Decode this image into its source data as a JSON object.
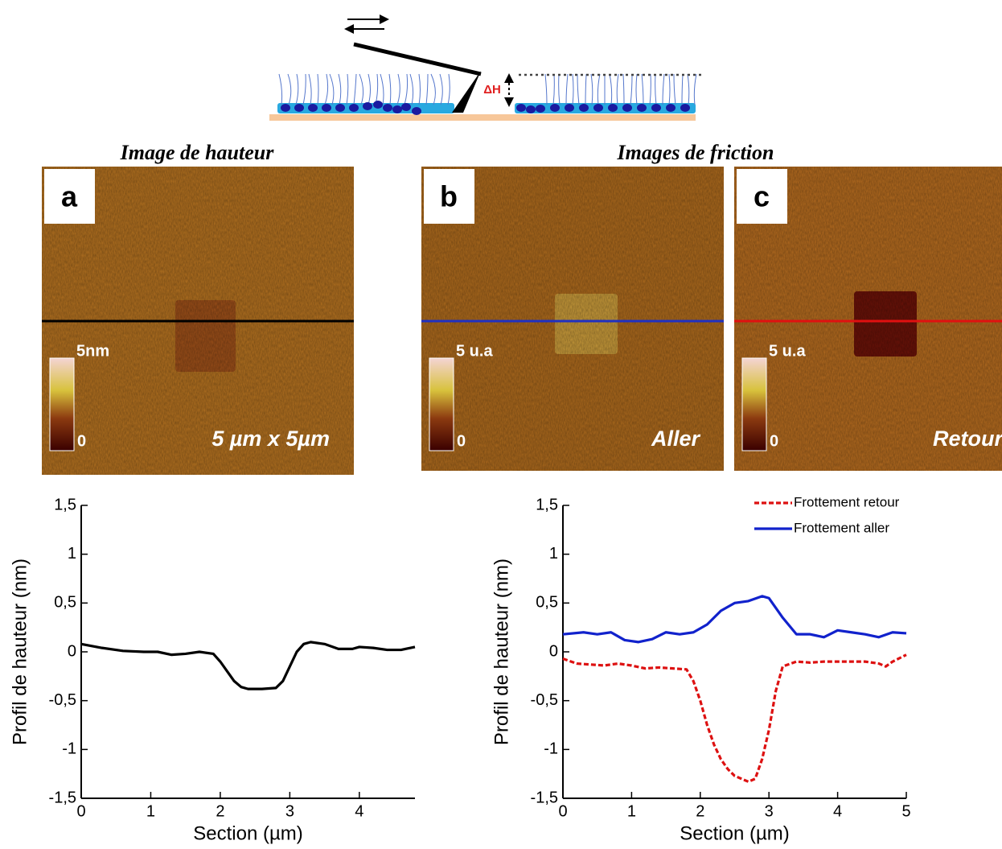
{
  "figure": {
    "schematic_label": "ΔH",
    "titles": [
      "Image de hauteur",
      "Images de friction"
    ],
    "panels": [
      {
        "letter": "a",
        "scale_max": "5nm",
        "scale_min": "0",
        "caption": "5 µm x 5µm"
      },
      {
        "letter": "b",
        "scale_max": "5 u.a",
        "scale_min": "0",
        "caption": "Aller"
      },
      {
        "letter": "c",
        "scale_max": "5 u.a",
        "scale_min": "0",
        "caption": "Retour"
      }
    ]
  },
  "chart_data": [
    {
      "type": "line",
      "x_label": "Section (µm)",
      "y_label": "Profil de hauteur (nm)",
      "xlim": [
        0,
        4.8
      ],
      "ylim": [
        -1.5,
        1.5
      ],
      "xticks": [
        0,
        1,
        2,
        3,
        4
      ],
      "yticks": [
        {
          "value": -1.5,
          "label": "-1,5"
        },
        -1,
        {
          "value": -0.5,
          "label": "-0,5"
        },
        0,
        {
          "value": 0.5,
          "label": "0,5"
        },
        1,
        {
          "value": 1.5,
          "label": "1,5"
        }
      ],
      "series": [
        {
          "color": "#000000",
          "x": [
            0,
            0.3,
            0.6,
            0.9,
            1.1,
            1.3,
            1.5,
            1.7,
            1.9,
            2.0,
            2.1,
            2.2,
            2.3,
            2.4,
            2.6,
            2.8,
            2.9,
            3.0,
            3.1,
            3.2,
            3.3,
            3.5,
            3.7,
            3.9,
            4.0,
            4.2,
            4.4,
            4.6,
            4.8
          ],
          "values": [
            0.08,
            0.04,
            0.01,
            0,
            0,
            -0.03,
            -0.02,
            0,
            -0.02,
            -0.1,
            -0.2,
            -0.3,
            -0.36,
            -0.38,
            -0.38,
            -0.37,
            -0.3,
            -0.15,
            0,
            0.08,
            0.1,
            0.08,
            0.03,
            0.03,
            0.05,
            0.04,
            0.02,
            0.02,
            0.05
          ]
        }
      ]
    },
    {
      "type": "line",
      "x_label": "Section (µm)",
      "y_label": "Profil de hauteur (nm)",
      "xlim": [
        0,
        5
      ],
      "ylim": [
        -1.5,
        1.5
      ],
      "xticks": [
        0,
        1,
        2,
        3,
        4,
        5
      ],
      "yticks": [
        {
          "value": -1.5,
          "label": "-1,5"
        },
        -1,
        {
          "value": -0.5,
          "label": "-0,5"
        },
        0,
        {
          "value": 0.5,
          "label": "0,5"
        },
        1,
        {
          "value": 1.5,
          "label": "1,5"
        }
      ],
      "series": [
        {
          "name": "Frottement retour",
          "color": "#dd1111",
          "dashed": true,
          "x": [
            0,
            0.2,
            0.4,
            0.6,
            0.8,
            1.0,
            1.2,
            1.4,
            1.6,
            1.8,
            1.9,
            2.0,
            2.1,
            2.2,
            2.3,
            2.4,
            2.5,
            2.6,
            2.7,
            2.8,
            2.9,
            3.0,
            3.1,
            3.2,
            3.4,
            3.6,
            3.8,
            4.0,
            4.2,
            4.4,
            4.6,
            4.7,
            4.8,
            5.0
          ],
          "values": [
            -0.07,
            -0.12,
            -0.13,
            -0.14,
            -0.12,
            -0.14,
            -0.17,
            -0.16,
            -0.17,
            -0.18,
            -0.3,
            -0.5,
            -0.75,
            -0.95,
            -1.1,
            -1.2,
            -1.27,
            -1.3,
            -1.33,
            -1.3,
            -1.1,
            -0.8,
            -0.4,
            -0.15,
            -0.1,
            -0.11,
            -0.1,
            -0.1,
            -0.1,
            -0.1,
            -0.12,
            -0.15,
            -0.1,
            -0.03
          ]
        },
        {
          "name": "Frottement aller",
          "color": "#1122cc",
          "dashed": false,
          "x": [
            0,
            0.3,
            0.5,
            0.7,
            0.9,
            1.1,
            1.3,
            1.5,
            1.7,
            1.9,
            2.1,
            2.3,
            2.5,
            2.7,
            2.9,
            3.0,
            3.2,
            3.4,
            3.6,
            3.8,
            4.0,
            4.2,
            4.4,
            4.6,
            4.8,
            5.0
          ],
          "values": [
            0.18,
            0.2,
            0.18,
            0.2,
            0.12,
            0.1,
            0.13,
            0.2,
            0.18,
            0.2,
            0.28,
            0.42,
            0.5,
            0.52,
            0.57,
            0.55,
            0.35,
            0.18,
            0.18,
            0.15,
            0.22,
            0.2,
            0.18,
            0.15,
            0.2,
            0.19
          ]
        }
      ]
    }
  ]
}
